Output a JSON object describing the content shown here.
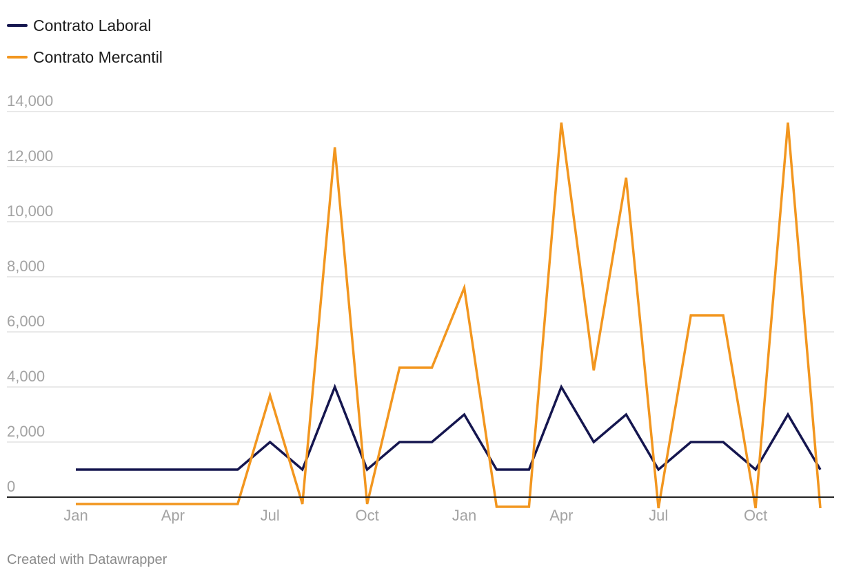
{
  "chart_data": {
    "type": "line",
    "title": "",
    "xlabel": "",
    "ylabel": "",
    "ylim": [
      0,
      14000
    ],
    "yticks": [
      0,
      2000,
      4000,
      6000,
      8000,
      10000,
      12000,
      14000
    ],
    "ytick_labels": [
      "0",
      "2,000",
      "4,000",
      "6,000",
      "8,000",
      "10,000",
      "12,000",
      "14,000"
    ],
    "xtick_labels": [
      {
        "label": "Jan",
        "index": 0
      },
      {
        "label": "Apr",
        "index": 3
      },
      {
        "label": "Jul",
        "index": 6
      },
      {
        "label": "Oct",
        "index": 9
      },
      {
        "label": "Jan",
        "index": 12
      },
      {
        "label": "Apr",
        "index": 15
      },
      {
        "label": "Jul",
        "index": 18
      },
      {
        "label": "Oct",
        "index": 21
      }
    ],
    "num_points": 24,
    "legend_position": "top-left",
    "series": [
      {
        "name": "Contrato Laboral",
        "color": "#15164f",
        "values": [
          1000,
          1000,
          1000,
          1000,
          1000,
          1000,
          2000,
          1000,
          4000,
          1000,
          2000,
          2000,
          3000,
          1000,
          1000,
          4000,
          2000,
          3000,
          1000,
          2000,
          2000,
          1000,
          3000,
          1000
        ]
      },
      {
        "name": "Contrato Mercantil",
        "color": "#f2961f",
        "values": [
          -250,
          -250,
          -250,
          -250,
          -250,
          -250,
          3700,
          -250,
          12700,
          -250,
          4700,
          4700,
          7600,
          -350,
          -350,
          13600,
          4600,
          11600,
          -400,
          6600,
          6600,
          -400,
          13600,
          -400
        ]
      }
    ]
  },
  "footer": {
    "credit": "Created with Datawrapper"
  }
}
